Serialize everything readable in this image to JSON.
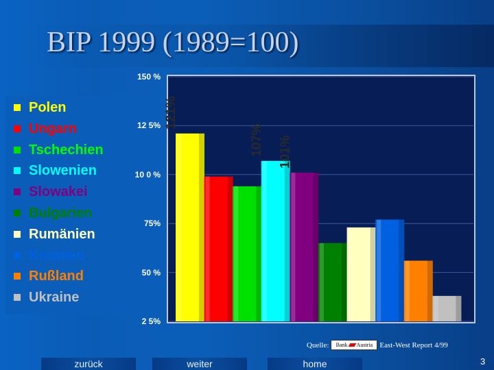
{
  "title": "BIP 1999 (1989=100)",
  "footer": {
    "source_label": "Quelle:",
    "logo_text_left": "Bank",
    "logo_text_right": "Austria",
    "report": "East-West Report 4/99"
  },
  "nav": {
    "back_label": "zurück",
    "next_label": "weiter",
    "home_label": "home"
  },
  "page_number": "3",
  "chart_data": {
    "type": "bar",
    "title": "BIP 1999 (1989=100)",
    "ylim": [
      25,
      150
    ],
    "y_ticks": [
      25,
      50,
      75,
      100,
      125,
      150
    ],
    "y_tick_labels": [
      "2 5%",
      "50 %",
      "75%",
      "10 0 %",
      "12 5%",
      "150 %"
    ],
    "grid": true,
    "legend_position": "left",
    "categories": [
      "Polen",
      "Ungarn",
      "Tschechien",
      "Slowenien",
      "Slowakei",
      "Bulgarien",
      "Rumänien",
      "Kroatien",
      "Rußland",
      "Ukraine"
    ],
    "values": [
      121,
      99,
      94,
      107,
      101,
      65,
      73,
      77,
      56,
      38
    ],
    "data_labels": [
      "121%",
      "",
      "",
      "107%",
      "101%",
      "",
      "",
      "",
      "",
      ""
    ],
    "colors": [
      "#ffff00",
      "#ff0000",
      "#00e000",
      "#00ffff",
      "#800080",
      "#008000",
      "#ffffc0",
      "#0060e0",
      "#ff8000",
      "#c0c0c0"
    ],
    "label_colors": [
      "#ffff00",
      "#ff0000",
      "#00ff00",
      "#00ffff",
      "#800080",
      "#008000",
      "#ffffc0",
      "#0060e0",
      "#ff8000",
      "#c0c0c0"
    ]
  }
}
